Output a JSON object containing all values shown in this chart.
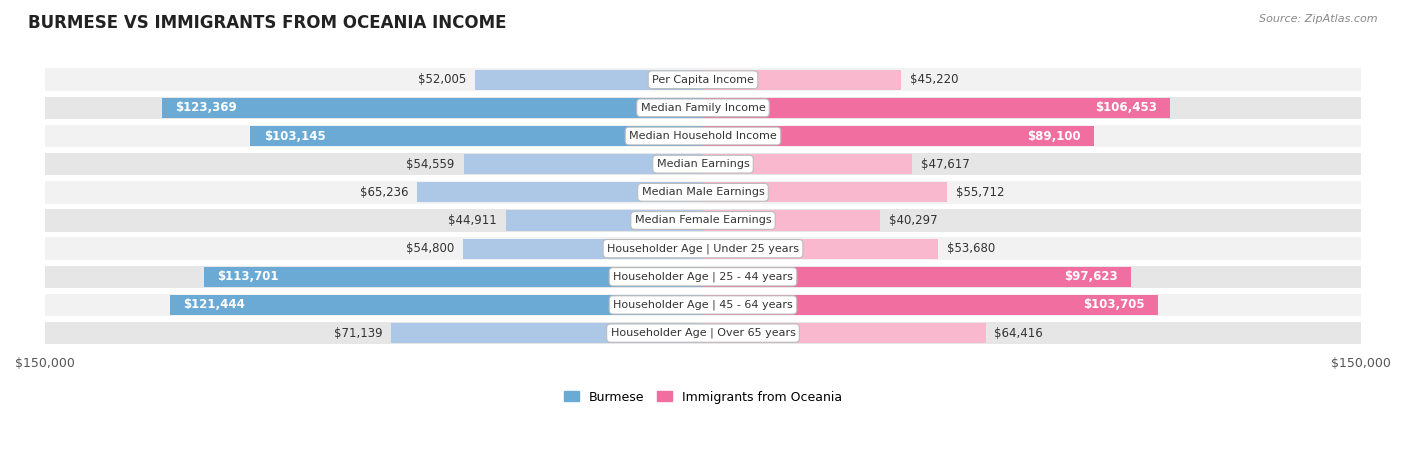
{
  "title": "BURMESE VS IMMIGRANTS FROM OCEANIA INCOME",
  "source": "Source: ZipAtlas.com",
  "categories": [
    "Per Capita Income",
    "Median Family Income",
    "Median Household Income",
    "Median Earnings",
    "Median Male Earnings",
    "Median Female Earnings",
    "Householder Age | Under 25 years",
    "Householder Age | 25 - 44 years",
    "Householder Age | 45 - 64 years",
    "Householder Age | Over 65 years"
  ],
  "burmese_values": [
    52005,
    123369,
    103145,
    54559,
    65236,
    44911,
    54800,
    113701,
    121444,
    71139
  ],
  "oceania_values": [
    45220,
    106453,
    89100,
    47617,
    55712,
    40297,
    53680,
    97623,
    103705,
    64416
  ],
  "burmese_labels": [
    "$52,005",
    "$123,369",
    "$103,145",
    "$54,559",
    "$65,236",
    "$44,911",
    "$54,800",
    "$113,701",
    "$121,444",
    "$71,139"
  ],
  "oceania_labels": [
    "$45,220",
    "$106,453",
    "$89,100",
    "$47,617",
    "$55,712",
    "$40,297",
    "$53,680",
    "$97,623",
    "$103,705",
    "$64,416"
  ],
  "burmese_color_light": "#adc8e6",
  "burmese_color_dark": "#6aaad4",
  "oceania_color_light": "#f9b8ce",
  "oceania_color_dark": "#f06fa0",
  "max_value": 150000,
  "bg_color": "#ffffff",
  "row_bg_light": "#f2f2f2",
  "row_bg_dark": "#e6e6e6",
  "label_inside_threshold": 75000,
  "legend_burmese": "Burmese",
  "legend_oceania": "Immigrants from Oceania"
}
